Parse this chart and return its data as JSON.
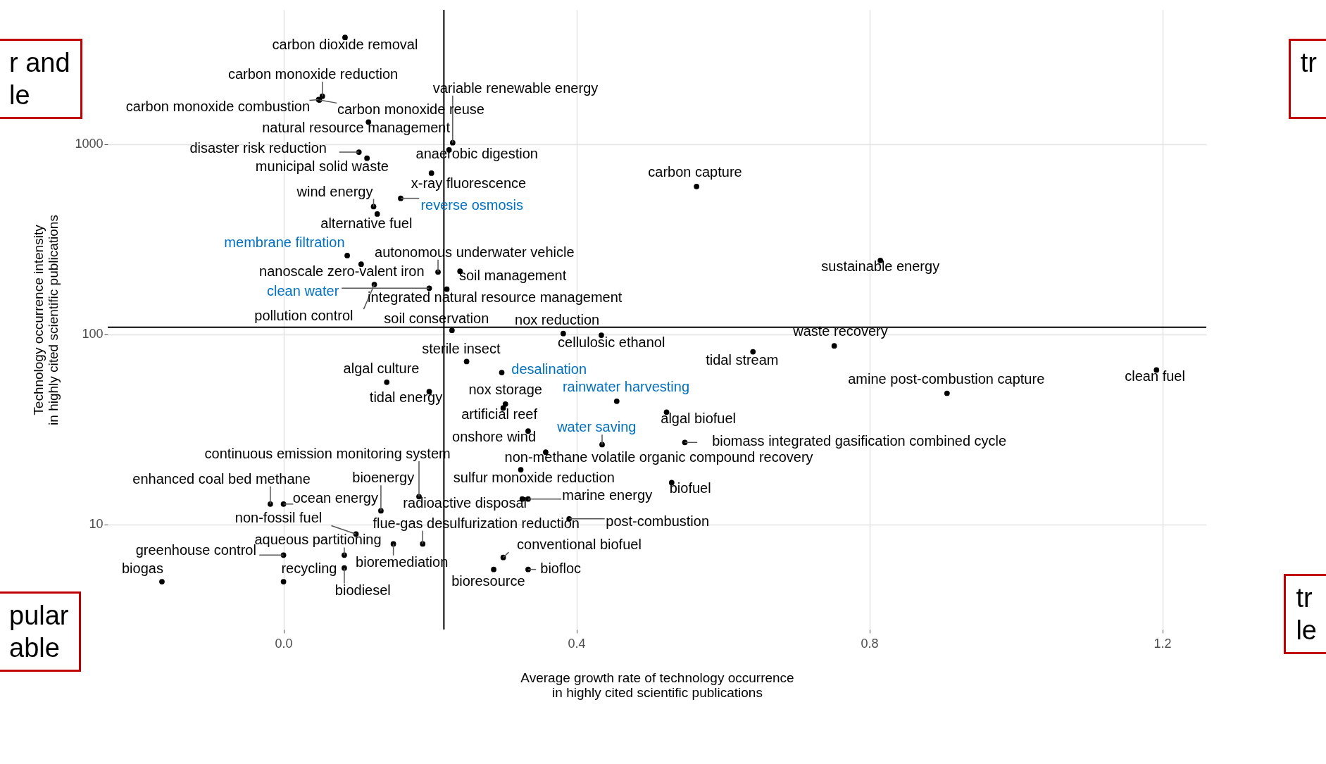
{
  "chart_data": {
    "type": "scatter",
    "xlabel": "Average growth rate of technology occurrence\nin highly cited scientific publications",
    "ylabel": "Technology occurrence intensity\nin highly cited scientific publications",
    "xlim": [
      -0.24,
      1.26
    ],
    "ylim": [
      2.8,
      5100
    ],
    "xticks": [
      {
        "value": 0,
        "label": "0.0"
      },
      {
        "value": 0.4,
        "label": "0.4"
      },
      {
        "value": 0.8,
        "label": "0.8"
      },
      {
        "value": 1.2,
        "label": "1.2"
      }
    ],
    "yticks": [
      10,
      100,
      1000
    ],
    "log": "y",
    "grid": true,
    "marker": "circle",
    "series": [
      {
        "color": "#000000",
        "x": [
          0.084,
          0.053,
          0.048,
          0.049,
          0.116,
          0.103,
          0.114,
          0.231,
          0.226,
          0.202,
          0.123,
          0.128,
          0.564,
          0.211,
          0.106,
          0.241,
          0.124,
          0.223,
          0.23,
          0.382,
          0.434,
          0.815,
          0.752,
          0.641,
          1.192,
          0.906,
          0.25,
          0.141,
          0.199,
          0.303,
          0.3,
          0.523,
          0.334,
          0.548,
          0.358,
          0.185,
          0.133,
          0.324,
          0.326,
          0.334,
          0.53,
          -0.018,
          0.0,
          0.099,
          0.19,
          0.083,
          0.15,
          0.0,
          0.083,
          0.0,
          -0.166,
          0.39,
          0.3,
          0.287,
          0.334
        ],
        "values": [
          3650,
          1790,
          1720,
          1710,
          1310,
          910,
          845,
          1020,
          935,
          705,
          470,
          430,
          600,
          213,
          234,
          215,
          183,
          173,
          105,
          101,
          99,
          245,
          87,
          81,
          65,
          49,
          72,
          56,
          50,
          43,
          41,
          39,
          31,
          27,
          24,
          14,
          11.8,
          19.4,
          13.6,
          13.6,
          16.6,
          12.8,
          12.8,
          8.9,
          7.9,
          6.9,
          7.9,
          6.9,
          5.9,
          5.0,
          5.0,
          10.7,
          6.7,
          5.8,
          5.8
        ],
        "value_labels": [
          "carbon dioxide removal",
          "carbon monoxide reduction",
          "carbon monoxide combustion",
          "carbon monoxide reuse",
          "natural resource management",
          "disaster risk reduction",
          "municipal solid waste",
          "variable renewable energy",
          "anaerobic digestion",
          "x-ray fluorescence",
          "wind energy",
          "alternative fuel",
          "carbon capture",
          "autonomous underwater vehicle",
          "nanoscale zero-valent iron",
          "soil management",
          "pollution control",
          "integrated natural resource management",
          "soil conservation",
          "nox reduction",
          "cellulosic ethanol",
          "sustainable energy",
          "waste recovery",
          "tidal stream",
          "clean fuel",
          "amine post-combustion capture",
          "sterile insect",
          "algal culture",
          "tidal energy",
          "nox storage",
          "artificial reef",
          "algal biofuel",
          "onshore wind",
          "biomass integrated gasification combined cycle",
          "non-methane volatile organic compound recovery",
          "continuous emission monitoring system",
          "bioenergy",
          "sulfur monoxide reduction",
          "radioactive disposal",
          "marine energy",
          "biofuel",
          "enhanced coal bed methane",
          "ocean energy",
          "non-fossil fuel",
          "flue-gas desulfurization reduction",
          "aqueous partitioning",
          "bioremediation",
          "greenhouse control",
          "biodiesel",
          "recycling",
          "biogas",
          "post-combustion",
          "conventional biofuel",
          "bioresource",
          "biofloc"
        ]
      },
      {
        "color": "#000000",
        "x": [
          0.16,
          0.087,
          0.199,
          0.298,
          0.455,
          0.435
        ],
        "values": [
          520,
          260,
          175,
          63,
          44.5,
          26.3
        ],
        "value_labels": [
          "reverse osmosis",
          "membrane filtration",
          "clean water",
          "desalination",
          "rainwater harvesting",
          "water saving"
        ]
      }
    ],
    "ref_lines": [
      {
        "axis": "x",
        "value": 0.219,
        "color": "#000000"
      },
      {
        "axis": "y",
        "value": 109,
        "color": "#000000"
      }
    ],
    "annotations": [
      "r and\nle",
      "tr",
      "pular\nable",
      "tr\nle"
    ]
  }
}
